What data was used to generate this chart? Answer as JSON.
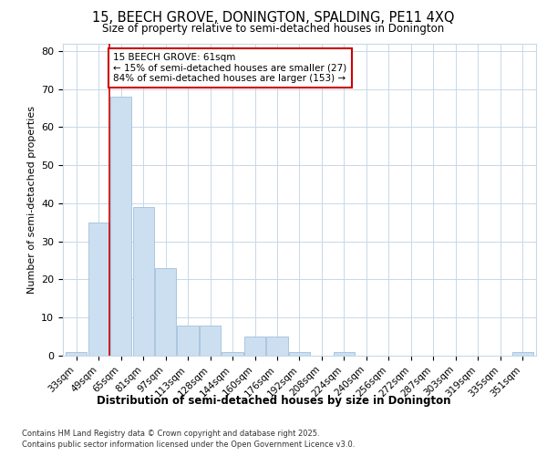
{
  "title1": "15, BEECH GROVE, DONINGTON, SPALDING, PE11 4XQ",
  "title2": "Size of property relative to semi-detached houses in Donington",
  "xlabel": "Distribution of semi-detached houses by size in Donington",
  "ylabel": "Number of semi-detached properties",
  "categories": [
    "33sqm",
    "49sqm",
    "65sqm",
    "81sqm",
    "97sqm",
    "113sqm",
    "128sqm",
    "144sqm",
    "160sqm",
    "176sqm",
    "192sqm",
    "208sqm",
    "224sqm",
    "240sqm",
    "256sqm",
    "272sqm",
    "287sqm",
    "303sqm",
    "319sqm",
    "335sqm",
    "351sqm"
  ],
  "values": [
    1,
    35,
    68,
    39,
    23,
    8,
    8,
    1,
    5,
    5,
    1,
    0,
    1,
    0,
    0,
    0,
    0,
    0,
    0,
    0,
    1
  ],
  "bar_color": "#ccdff0",
  "bar_edge_color": "#a0c0dc",
  "annotation_title": "15 BEECH GROVE: 61sqm",
  "annotation_line1": "← 15% of semi-detached houses are smaller (27)",
  "annotation_line2": "84% of semi-detached houses are larger (153) →",
  "annotation_box_color": "#ffffff",
  "annotation_box_edge": "#cc0000",
  "vline_color": "#cc0000",
  "vline_x_index": 1.5,
  "ylim": [
    0,
    82
  ],
  "yticks": [
    0,
    10,
    20,
    30,
    40,
    50,
    60,
    70,
    80
  ],
  "footer1": "Contains HM Land Registry data © Crown copyright and database right 2025.",
  "footer2": "Contains public sector information licensed under the Open Government Licence v3.0.",
  "bg_color": "#ffffff",
  "plot_bg_color": "#ffffff",
  "grid_color": "#c8d8e8"
}
